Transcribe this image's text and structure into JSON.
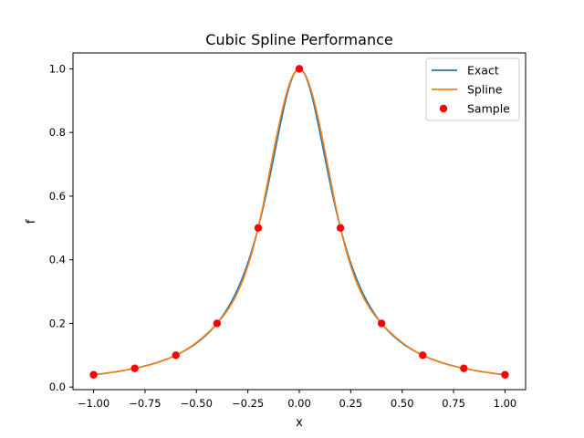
{
  "chart_data": {
    "type": "line",
    "title": "Cubic Spline Performance",
    "xlabel": "x",
    "ylabel": "f",
    "xlim": [
      -1.1,
      1.1
    ],
    "ylim": [
      -0.0081,
      1.05
    ],
    "xticks": [
      -1.0,
      -0.75,
      -0.5,
      -0.25,
      0.0,
      0.25,
      0.5,
      0.75,
      1.0
    ],
    "xtick_labels": [
      "−1.00",
      "−0.75",
      "−0.50",
      "−0.25",
      "0.00",
      "0.25",
      "0.50",
      "0.75",
      "1.00"
    ],
    "yticks": [
      0.0,
      0.2,
      0.4,
      0.6,
      0.8,
      1.0
    ],
    "ytick_labels": [
      "0.0",
      "0.2",
      "0.4",
      "0.6",
      "0.8",
      "1.0"
    ],
    "legend_position": "top-right",
    "grid": false,
    "series": [
      {
        "name": "Exact",
        "type": "line",
        "color": "#1f77b4",
        "function": "1/(1+25x^2)"
      },
      {
        "name": "Spline",
        "type": "line",
        "color": "#ff7f0e",
        "interpolates": "Sample"
      },
      {
        "name": "Sample",
        "type": "scatter",
        "color": "#ff0000",
        "points": [
          {
            "x": -1.0,
            "y": 0.0385
          },
          {
            "x": -0.8,
            "y": 0.0588
          },
          {
            "x": -0.6,
            "y": 0.1
          },
          {
            "x": -0.4,
            "y": 0.2
          },
          {
            "x": -0.2,
            "y": 0.5
          },
          {
            "x": 0.0,
            "y": 1.0
          },
          {
            "x": 0.2,
            "y": 0.5
          },
          {
            "x": 0.4,
            "y": 0.2
          },
          {
            "x": 0.6,
            "y": 0.1
          },
          {
            "x": 0.8,
            "y": 0.0588
          },
          {
            "x": 1.0,
            "y": 0.0385
          }
        ]
      }
    ]
  }
}
